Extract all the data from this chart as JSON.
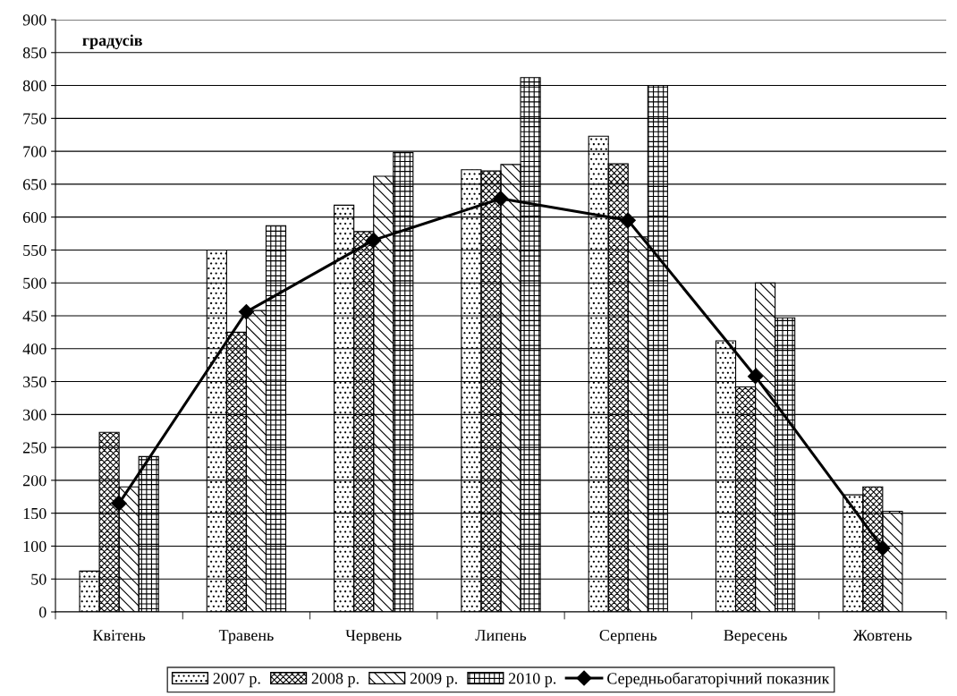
{
  "chart_data": {
    "type": "bar",
    "annotations": [
      "градусів"
    ],
    "categories": [
      "Квітень",
      "Травень",
      "Червень",
      "Липень",
      "Серпень",
      "Вересень",
      "Жовтень"
    ],
    "series": [
      {
        "name": "2007 р.",
        "color": "#000000",
        "values": [
          62,
          550,
          618,
          672,
          723,
          412,
          178
        ]
      },
      {
        "name": "2008 р.",
        "color": "#000000",
        "values": [
          273,
          425,
          578,
          670,
          681,
          342,
          190
        ]
      },
      {
        "name": "2009 р.",
        "color": "#000000",
        "values": [
          190,
          458,
          662,
          680,
          570,
          500,
          153
        ]
      },
      {
        "name": "2010 р.",
        "color": "#000000",
        "values": [
          236,
          587,
          698,
          812,
          800,
          447,
          null
        ]
      },
      {
        "name": "Середньобагаторічний показник",
        "type": "line",
        "color": "#000000",
        "marker": "diamond",
        "values": [
          165,
          456,
          565,
          628,
          595,
          358,
          97
        ]
      }
    ],
    "ylim": [
      0,
      900
    ],
    "yticks": [
      0,
      50,
      100,
      150,
      200,
      250,
      300,
      350,
      400,
      450,
      500,
      550,
      600,
      650,
      700,
      750,
      800,
      850,
      900
    ],
    "grid": "y",
    "legend": "bottom"
  }
}
